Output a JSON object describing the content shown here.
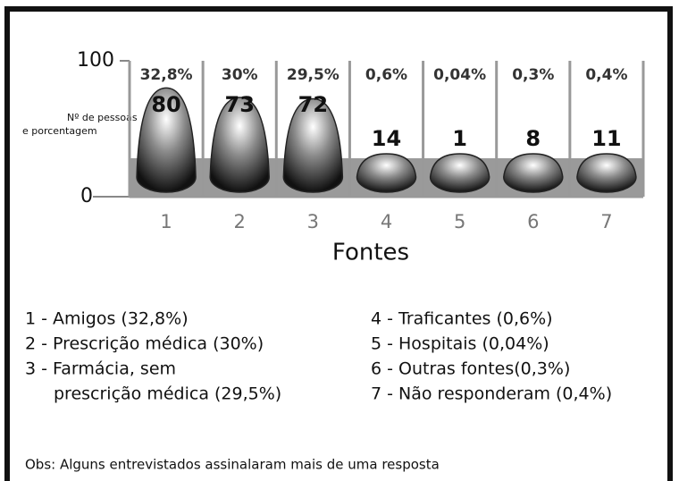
{
  "chart_data": {
    "type": "pictograph",
    "y_label": [
      "Nº de pessoas",
      "e porcentagem"
    ],
    "x_label": "Fontes",
    "categories": [
      "1",
      "2",
      "3",
      "4",
      "5",
      "6",
      "7"
    ],
    "values": [
      80,
      73,
      72,
      14,
      1,
      8,
      11
    ],
    "percent_labels": [
      "32,8%",
      "30%",
      "29,5%",
      "0,6%",
      "0,04%",
      "0,3%",
      "0,4%"
    ],
    "color": "#444444",
    "ylim": [
      0,
      100
    ],
    "yticks": [
      0,
      100
    ],
    "legend": {
      "left": [
        [
          "1 - Amigos (32,8%)"
        ],
        [
          "2 - Prescrição médica (30%)"
        ],
        [
          "3 - Farmácia, sem",
          "prescrição médica  (29,5%)"
        ]
      ],
      "right": [
        [
          "4 - Traficantes (0,6%)"
        ],
        [
          "5 - Hospitais (0,04%)"
        ],
        [
          "6 - Outras fontes(0,3%)"
        ],
        [
          "7 - Não responderam (0,4%)"
        ]
      ]
    },
    "note": "Obs: Alguns entrevistados assinalaram mais de uma resposta"
  }
}
